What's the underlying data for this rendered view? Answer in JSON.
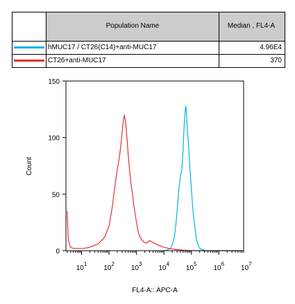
{
  "legend": {
    "header_name": "Population Name",
    "header_stat": "Median , FL4-A",
    "rows": [
      {
        "label": "hMUC17 / CT26(C14)+anti-MUC17",
        "value": "4.96E4",
        "color": "#00b4e8"
      },
      {
        "label": "CT26+anti-MUC17",
        "value": "370",
        "color": "#e83030"
      }
    ]
  },
  "chart_data": {
    "type": "line",
    "xlabel": "FL4-A:: APC-A",
    "ylabel": "Count",
    "xscale": "log",
    "xlim": [
      2.7,
      8000000
    ],
    "ylim": [
      0,
      150
    ],
    "yticks": [
      0,
      50,
      100,
      150
    ],
    "xtick_labels": [
      {
        "exp": 1,
        "text": "10",
        "sup": "1"
      },
      {
        "exp": 2,
        "text": "10",
        "sup": "2"
      },
      {
        "exp": 3,
        "text": "10",
        "sup": "3"
      },
      {
        "exp": 4,
        "text": "10",
        "sup": "4"
      },
      {
        "exp": 5,
        "text": "10",
        "sup": "5"
      },
      {
        "exp": 6,
        "text": "10",
        "sup": "6"
      },
      {
        "exp": 7,
        "text": "10",
        "sup": "7"
      }
    ],
    "series": [
      {
        "name": "hMUC17 / CT26(C14)+anti-MUC17",
        "color": "#00b4e8",
        "x": [
          10000,
          13000,
          17000,
          20000,
          24000,
          27000,
          31000,
          35000,
          40000,
          45000,
          50000,
          55000,
          58000,
          62000,
          66000,
          70000,
          75000,
          80000,
          90000,
          100000,
          110000,
          120000,
          135000,
          150000,
          170000,
          200000,
          250000,
          300000,
          350000,
          400000,
          1000000,
          7000000
        ],
        "y": [
          0,
          0.5,
          2,
          5,
          12,
          22,
          38,
          55,
          66,
          72,
          90,
          112,
          120,
          128,
          122,
          110,
          100,
          90,
          70,
          55,
          40,
          30,
          20,
          12,
          6,
          2,
          1,
          0.5,
          0,
          0,
          0,
          0
        ]
      },
      {
        "name": "CT26+anti-MUC17",
        "color": "#e83030",
        "x": [
          3,
          3.3,
          3.7,
          4,
          5,
          8,
          12,
          20,
          40,
          70,
          100,
          130,
          160,
          200,
          230,
          260,
          290,
          320,
          360,
          400,
          450,
          500,
          560,
          620,
          700,
          800,
          1000,
          1200,
          1500,
          2000,
          2500,
          3000,
          3500,
          4000,
          5000,
          6000,
          8000,
          10000,
          15000,
          20000,
          30000,
          50000,
          100000,
          1000000,
          7000000
        ],
        "y": [
          35,
          10,
          5,
          3,
          2,
          2,
          2,
          3,
          6,
          12,
          22,
          38,
          55,
          72,
          80,
          90,
          100,
          112,
          120,
          114,
          100,
          85,
          72,
          60,
          52,
          40,
          25,
          15,
          10,
          7,
          7,
          9,
          8,
          7,
          6,
          5,
          4,
          3,
          2,
          1.5,
          1,
          0.5,
          0,
          0,
          0
        ]
      }
    ]
  }
}
